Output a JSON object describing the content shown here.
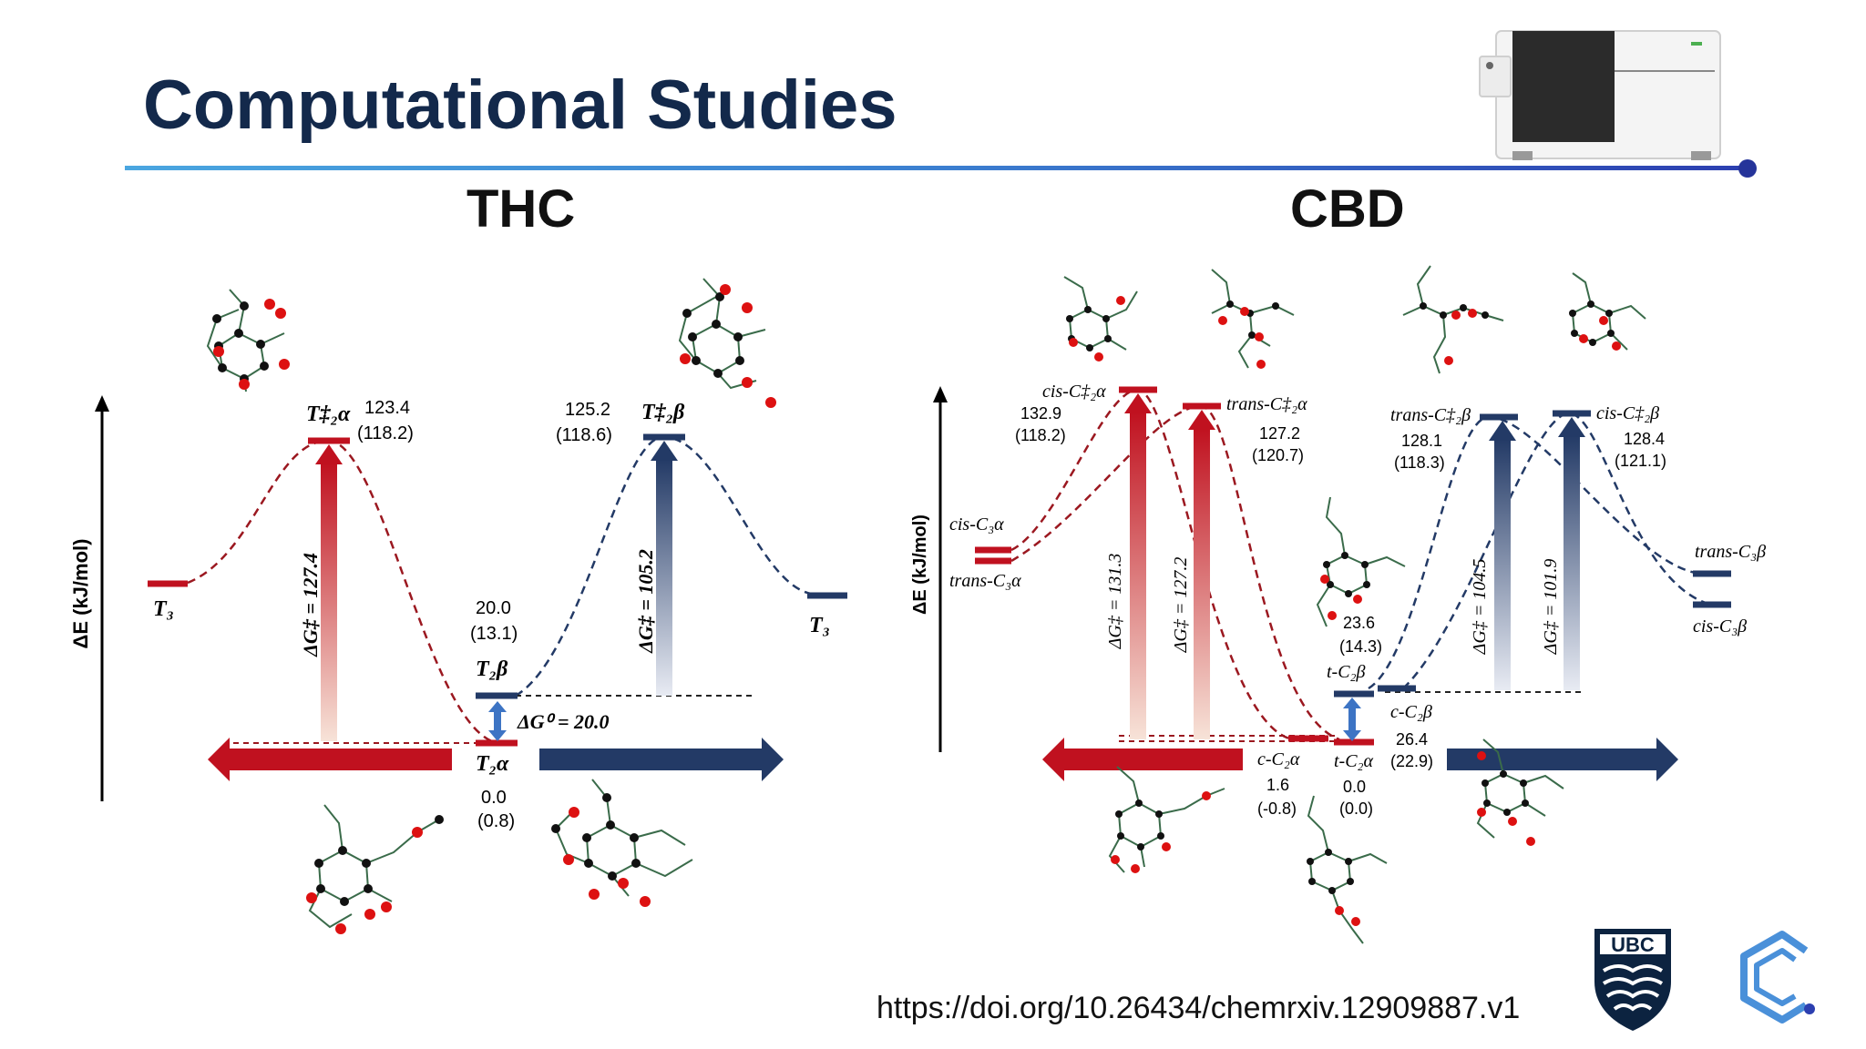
{
  "title": "Computational Studies",
  "doi": "https://doi.org/10.26434/chemrxiv.12909887.v1",
  "colors": {
    "title": "#13294b",
    "red": "#c0111f",
    "navy": "#233a66",
    "rule": "#3b7fd0"
  },
  "thc": {
    "heading": "THC",
    "yaxis": "ΔE (kJ/mol)",
    "labels": {
      "t3_left": "T₃",
      "t3_right": "T₃",
      "ts_alpha": "T‡₂α",
      "ts_beta": "T‡₂β",
      "t2b": "T₂β",
      "t2a": "T₂α",
      "ts_alpha_e": "123.4",
      "ts_alpha_g": "(118.2)",
      "ts_beta_e": "125.2",
      "ts_beta_g": "(118.6)",
      "t2b_e": "20.0",
      "t2b_g": "(13.1)",
      "t2a_e": "0.0",
      "t2a_g": "(0.8)",
      "dg_alpha": "ΔG‡ = 127.4",
      "dg_beta": "ΔG‡ = 105.2",
      "dg0": "ΔG⁰ = 20.0"
    }
  },
  "cbd": {
    "heading": "CBD",
    "yaxis": "ΔE (kJ/mol)",
    "labels": {
      "cis_c3a": "cis-C₃α",
      "trans_c3a": "trans-C₃α",
      "cis_ts2a": "cis-C‡₂α",
      "cis_ts2a_e": "132.9",
      "cis_ts2a_g": "(118.2)",
      "trans_ts2a": "trans-C‡₂α",
      "trans_ts2a_e": "127.2",
      "trans_ts2a_g": "(120.7)",
      "trans_ts2b": "trans-C‡₂β",
      "trans_ts2b_e": "128.1",
      "trans_ts2b_g": "(118.3)",
      "cis_ts2b": "cis-C‡₂β",
      "cis_ts2b_e": "128.4",
      "cis_ts2b_g": "(121.1)",
      "trans_c3b": "trans-C₃β",
      "cis_c3b": "cis-C₃β",
      "t_c2b": "t-C₂β",
      "t_c2b_e": "23.6",
      "t_c2b_g": "(14.3)",
      "c_c2b": "c-C₂β",
      "c_c2b_e": "26.4",
      "c_c2b_g": "(22.9)",
      "c_c2a": "c-C₂α",
      "c_c2a_e": "1.6",
      "c_c2a_g": "(-0.8)",
      "t_c2a": "t-C₂α",
      "t_c2a_e": "0.0",
      "t_c2a_g": "(0.0)",
      "dg1": "ΔG‡ = 131.3",
      "dg2": "ΔG‡ = 127.2",
      "dg3": "ΔG‡ = 104.5",
      "dg4": "ΔG‡ = 101.9"
    }
  },
  "logos": {
    "ubc": "UBC"
  }
}
